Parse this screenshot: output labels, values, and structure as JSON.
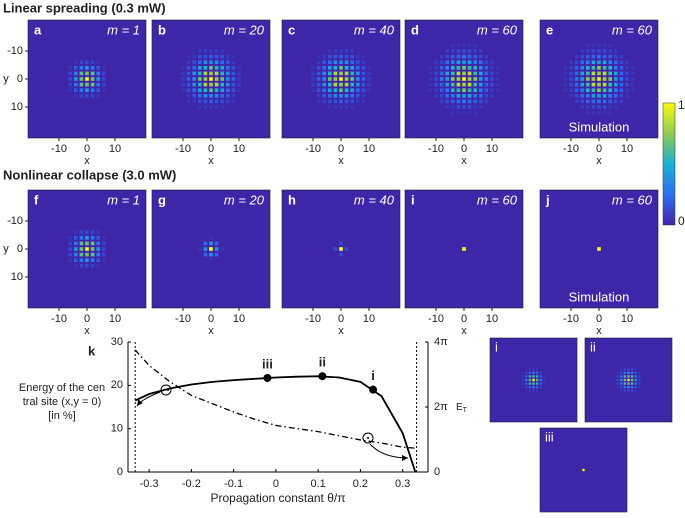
{
  "row1": {
    "title": "Linear spreading (0.3 mW)",
    "panels": [
      {
        "letter": "a",
        "label": "m = 1",
        "spread": 3
      },
      {
        "letter": "b",
        "label": "m = 20",
        "spread": 4.5
      },
      {
        "letter": "c",
        "label": "m = 40",
        "spread": 4.5
      },
      {
        "letter": "d",
        "label": "m = 60",
        "spread": 5
      },
      {
        "letter": "e",
        "label": "m = 60",
        "spread": 5,
        "note": "Simulation"
      }
    ]
  },
  "row2": {
    "title": "Nonlinear collapse (3.0 mW)",
    "panels": [
      {
        "letter": "f",
        "label": "m = 1",
        "spread": 3
      },
      {
        "letter": "g",
        "label": "m = 20",
        "spread": 1.6
      },
      {
        "letter": "h",
        "label": "m = 40",
        "spread": 1.0
      },
      {
        "letter": "i",
        "label": "m = 60",
        "spread": 0.6
      },
      {
        "letter": "j",
        "label": "m = 60",
        "spread": 0.7,
        "note": "Simulation"
      }
    ]
  },
  "map_axes": {
    "ticks": [
      -10,
      0,
      10
    ],
    "xlabel": "x",
    "ylabel": "y"
  },
  "colorbar": {
    "ticks": [
      1,
      0
    ]
  },
  "chart_data": {
    "type": "line",
    "letter": "k",
    "ylabel": "Energy of the central site (x,y = 0) [in %]",
    "xlabel": "Propagation constant θ/π",
    "y2label": "E",
    "y2label_sub": "T",
    "x": [
      -0.333,
      -0.3,
      -0.25,
      -0.2,
      -0.15,
      -0.1,
      -0.05,
      0,
      0.05,
      0.1,
      0.15,
      0.2,
      0.25,
      0.3,
      0.33
    ],
    "series": [
      {
        "color": "#000000",
        "style": "solid",
        "values": [
          16.5,
          18,
          19.3,
          20.2,
          20.8,
          21.2,
          21.5,
          21.8,
          22,
          22.1,
          21.8,
          20.8,
          17.5,
          9,
          0
        ]
      },
      {
        "color": "#000000",
        "style": "dashdot",
        "axis": "y2",
        "values": [
          11.8,
          10.3,
          8.7,
          7.4,
          6.6,
          5.8,
          5.1,
          4.5,
          4.2,
          3.9,
          3.5,
          3.1,
          2.8,
          2.4,
          2.3
        ]
      }
    ],
    "points": [
      {
        "label": "iii",
        "x": -0.02,
        "value": 21.7
      },
      {
        "label": "ii",
        "x": 0.11,
        "value": 22.1
      },
      {
        "label": "i",
        "x": 0.23,
        "value": 19
      }
    ],
    "band_edges": [
      -0.333,
      0.333
    ],
    "xlim": [
      -0.35,
      0.36
    ],
    "xticks": [
      -0.3,
      -0.2,
      -0.1,
      0,
      0.1,
      0.2,
      0.3
    ],
    "ylim": [
      0,
      30
    ],
    "yticks": [
      0,
      10,
      20,
      30
    ],
    "y2lim": [
      0,
      12.566
    ],
    "y2ticks": [
      0,
      {
        "value": 6.283,
        "label": "2π"
      },
      {
        "value": 12.566,
        "label": "4π"
      }
    ]
  },
  "insets": [
    {
      "label": "i",
      "spread": 2.6
    },
    {
      "label": "ii",
      "spread": 3
    },
    {
      "label": "iii",
      "spread": 0.8
    }
  ]
}
